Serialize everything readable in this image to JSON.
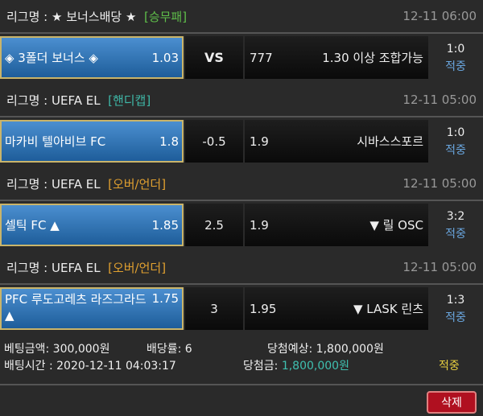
{
  "bets": [
    {
      "league_prefix": "리그명 : ★ 보너스배당 ★",
      "type": "[승무패]",
      "type_color": "#5fbf4a",
      "time": "12-11 06:00",
      "home": "◈ 3폴더 보너스 ◈",
      "home_odds": "1.03",
      "handicap": "VS",
      "away_odds": "777",
      "away": "1.30 이상 조합가능",
      "score": "1:0",
      "status": "적중"
    },
    {
      "league_prefix": "리그명 : UEFA EL",
      "type": "[핸디캡]",
      "type_color": "#3fb8a8",
      "time": "12-11 05:00",
      "home": "마카비 텔아비브 FC",
      "home_odds": "1.8",
      "handicap": "-0.5",
      "away_odds": "1.9",
      "away": "시바스스포르",
      "score": "1:0",
      "status": "적중"
    },
    {
      "league_prefix": "리그명 : UEFA EL",
      "type": "[오버/언더]",
      "type_color": "#e0a030",
      "time": "12-11 05:00",
      "home": "셀틱 FC ▲",
      "home_odds": "1.85",
      "handicap": "2.5",
      "away_odds": "1.9",
      "away": "▼ 릴 OSC",
      "score": "3:2",
      "status": "적중"
    },
    {
      "league_prefix": "리그명 : UEFA EL",
      "type": "[오버/언더]",
      "type_color": "#e0a030",
      "time": "12-11 05:00",
      "home": "PFC 루도고레츠 라즈그라드 ▲",
      "home_odds": "1.75",
      "handicap": "3",
      "away_odds": "1.95",
      "away": "▼ LASK 린츠",
      "score": "1:3",
      "status": "적중"
    }
  ],
  "summary": {
    "amount": "베팅금액: 300,000원",
    "rate": "배당률: 6",
    "expected": "당첨예상: 1,800,000원",
    "time": "배팅시간 : 2020-12-11 04:03:17",
    "win_label": "당첨금:",
    "win_value": "1,800,000원",
    "result": "적중"
  },
  "delete_label": "삭제"
}
